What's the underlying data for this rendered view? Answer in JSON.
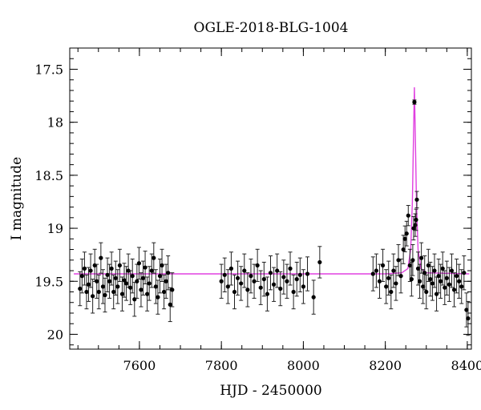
{
  "chart_data": {
    "type": "scatter",
    "title": "OGLE-2018-BLG-1004",
    "xlabel": "HJD - 2450000",
    "ylabel": "I magnitude",
    "xlim": [
      7430,
      8410
    ],
    "ylim": [
      20.14,
      17.3
    ],
    "y_inverted": true,
    "x_ticks": [
      7600,
      7800,
      8000,
      8200,
      8400
    ],
    "x_tick_labels": [
      "7600",
      "7800",
      "8000",
      "8200",
      "8400"
    ],
    "y_ticks": [
      17.5,
      18,
      18.5,
      19,
      19.5,
      20
    ],
    "y_tick_labels": [
      "17.5",
      "18",
      "18.5",
      "19",
      "19.5",
      "20"
    ],
    "x_minor_step": 50,
    "y_minor_step": 0.1,
    "grid": false,
    "legend": "none",
    "model_color": "#e040e0",
    "point_color": "#000000",
    "model": {
      "name": "",
      "baseline": 19.43,
      "peak_x": 8271,
      "peak_y": 17.67,
      "x": [
        7440,
        8200,
        8240,
        8255,
        8262,
        8266,
        8269,
        8271,
        8273,
        8276,
        8280,
        8287,
        8300,
        8405
      ],
      "y": [
        19.43,
        19.43,
        19.42,
        19.38,
        19.2,
        18.75,
        18.1,
        17.67,
        18.1,
        18.75,
        19.2,
        19.38,
        19.42,
        19.43
      ]
    },
    "series": [
      {
        "x": [
          7455,
          7460,
          7466,
          7471,
          7476,
          7481,
          7486,
          7491,
          7496,
          7501,
          7506,
          7511,
          7516,
          7522,
          7527,
          7532,
          7537,
          7542,
          7547,
          7552,
          7558,
          7563,
          7568,
          7573,
          7578,
          7583,
          7588,
          7594,
          7599,
          7604,
          7609,
          7614,
          7619,
          7624,
          7630,
          7635,
          7640,
          7645,
          7650,
          7655,
          7660,
          7665,
          7670,
          7675,
          7680
        ],
        "y": [
          19.57,
          19.45,
          19.38,
          19.6,
          19.53,
          19.4,
          19.64,
          19.35,
          19.5,
          19.6,
          19.28,
          19.55,
          19.63,
          19.44,
          19.5,
          19.38,
          19.6,
          19.47,
          19.55,
          19.35,
          19.62,
          19.49,
          19.52,
          19.4,
          19.56,
          19.45,
          19.67,
          19.5,
          19.33,
          19.58,
          19.47,
          19.37,
          19.62,
          19.52,
          19.4,
          19.28,
          19.55,
          19.65,
          19.45,
          19.35,
          19.6,
          19.5,
          19.42,
          19.72,
          19.58
        ]
      },
      {
        "x": [
          7800,
          7808,
          7816,
          7824,
          7832,
          7840,
          7848,
          7856,
          7864,
          7872,
          7880,
          7888,
          7896,
          7904,
          7912,
          7920,
          7928,
          7936,
          7944,
          7952,
          7960,
          7968,
          7976,
          7984,
          7992,
          8000,
          8010,
          8025,
          8040
        ],
        "y": [
          19.5,
          19.44,
          19.55,
          19.38,
          19.6,
          19.47,
          19.52,
          19.4,
          19.58,
          19.45,
          19.5,
          19.35,
          19.56,
          19.48,
          19.62,
          19.42,
          19.53,
          19.4,
          19.57,
          19.46,
          19.5,
          19.38,
          19.6,
          19.48,
          19.44,
          19.55,
          19.43,
          19.65,
          19.32
        ]
      },
      {
        "x": [
          8170,
          8178,
          8186,
          8194,
          8202,
          8208,
          8214,
          8220,
          8226,
          8232,
          8238,
          8244,
          8248,
          8252,
          8256,
          8260,
          8264,
          8267,
          8269,
          8271,
          8273,
          8275,
          8277,
          8280,
          8284,
          8288,
          8292,
          8296,
          8300,
          8305,
          8310,
          8315,
          8320,
          8325,
          8330,
          8335,
          8340,
          8345,
          8350,
          8356,
          8362,
          8368,
          8374,
          8380,
          8386,
          8392,
          8398,
          8402
        ],
        "y": [
          19.43,
          19.4,
          19.5,
          19.35,
          19.55,
          19.47,
          19.6,
          19.4,
          19.52,
          19.3,
          19.45,
          19.2,
          19.1,
          19.05,
          18.88,
          19.35,
          19.48,
          19.3,
          19.0,
          17.81,
          18.97,
          18.92,
          18.73,
          19.38,
          19.5,
          19.28,
          19.55,
          19.42,
          19.6,
          19.35,
          19.48,
          19.52,
          19.4,
          19.62,
          19.45,
          19.5,
          19.38,
          19.56,
          19.47,
          19.53,
          19.4,
          19.58,
          19.45,
          19.5,
          19.55,
          19.42,
          19.77,
          19.85
        ]
      }
    ]
  }
}
